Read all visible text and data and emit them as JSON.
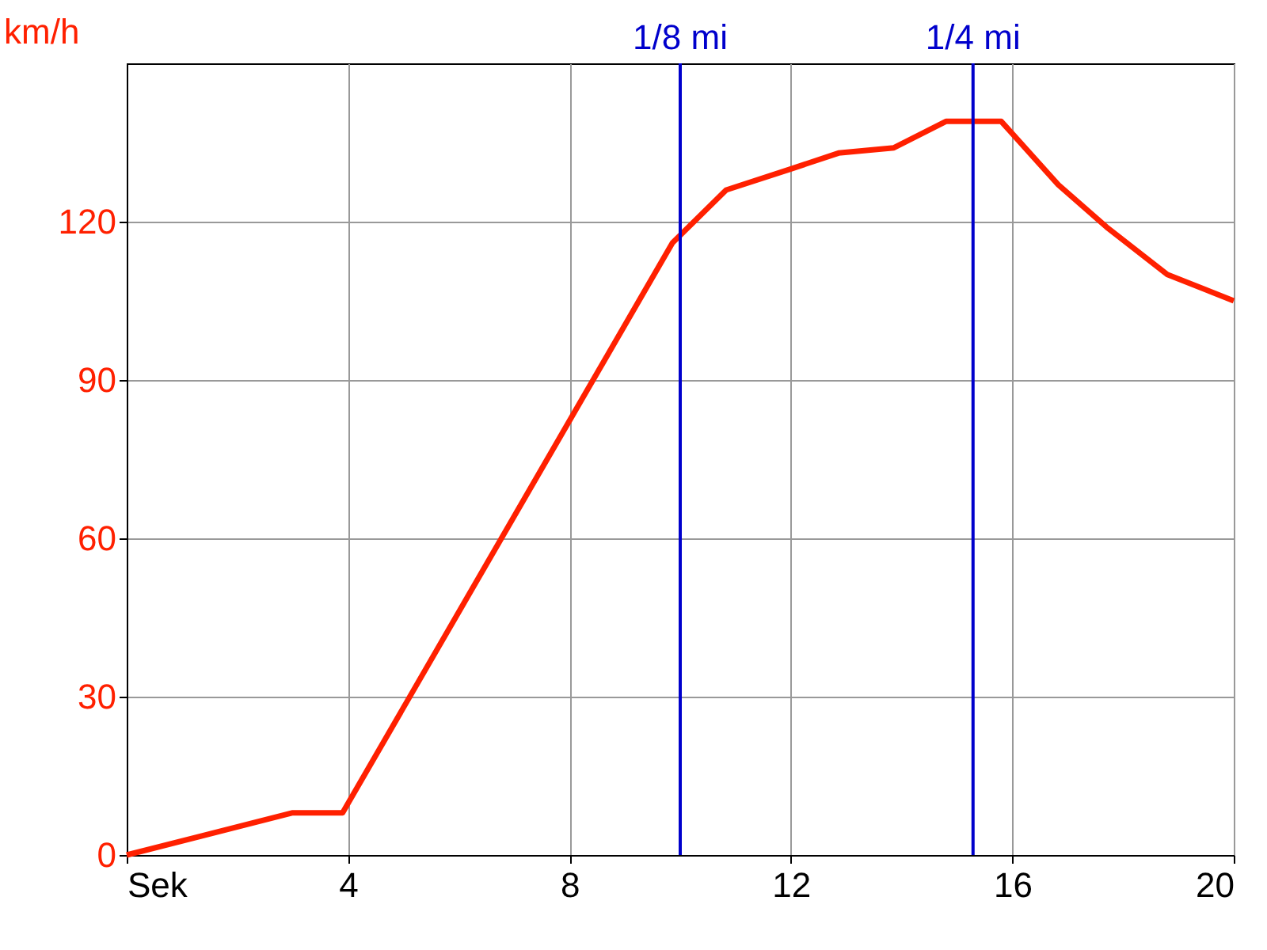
{
  "chart_data": {
    "type": "line",
    "ylabel": "km/h",
    "x": [
      0,
      3,
      3.9,
      9.86,
      10.83,
      12,
      12.86,
      13.86,
      14.8,
      15.8,
      16.83,
      17.7,
      18.8,
      20
    ],
    "series": [
      {
        "color": "#ff2000",
        "values": [
          0,
          8,
          8,
          116,
          126,
          130,
          133,
          134,
          139,
          139,
          127,
          119,
          110,
          105
        ]
      }
    ],
    "xlim": [
      0,
      20
    ],
    "xticks": [
      {
        "value": 0,
        "label": "Sek"
      },
      4,
      8,
      12,
      16,
      20
    ],
    "ylim": [
      0,
      150
    ],
    "yticks": [
      0,
      30,
      60,
      90,
      120
    ],
    "grid": true,
    "marker": "none",
    "line_style": "solid",
    "ref_lines": [
      {
        "axis": "x",
        "value": 10,
        "label": "1/8 mi",
        "color": "#0000cc"
      },
      {
        "axis": "x",
        "value": 15.29,
        "label": "1/4 mi",
        "color": "#0000cc"
      }
    ]
  }
}
